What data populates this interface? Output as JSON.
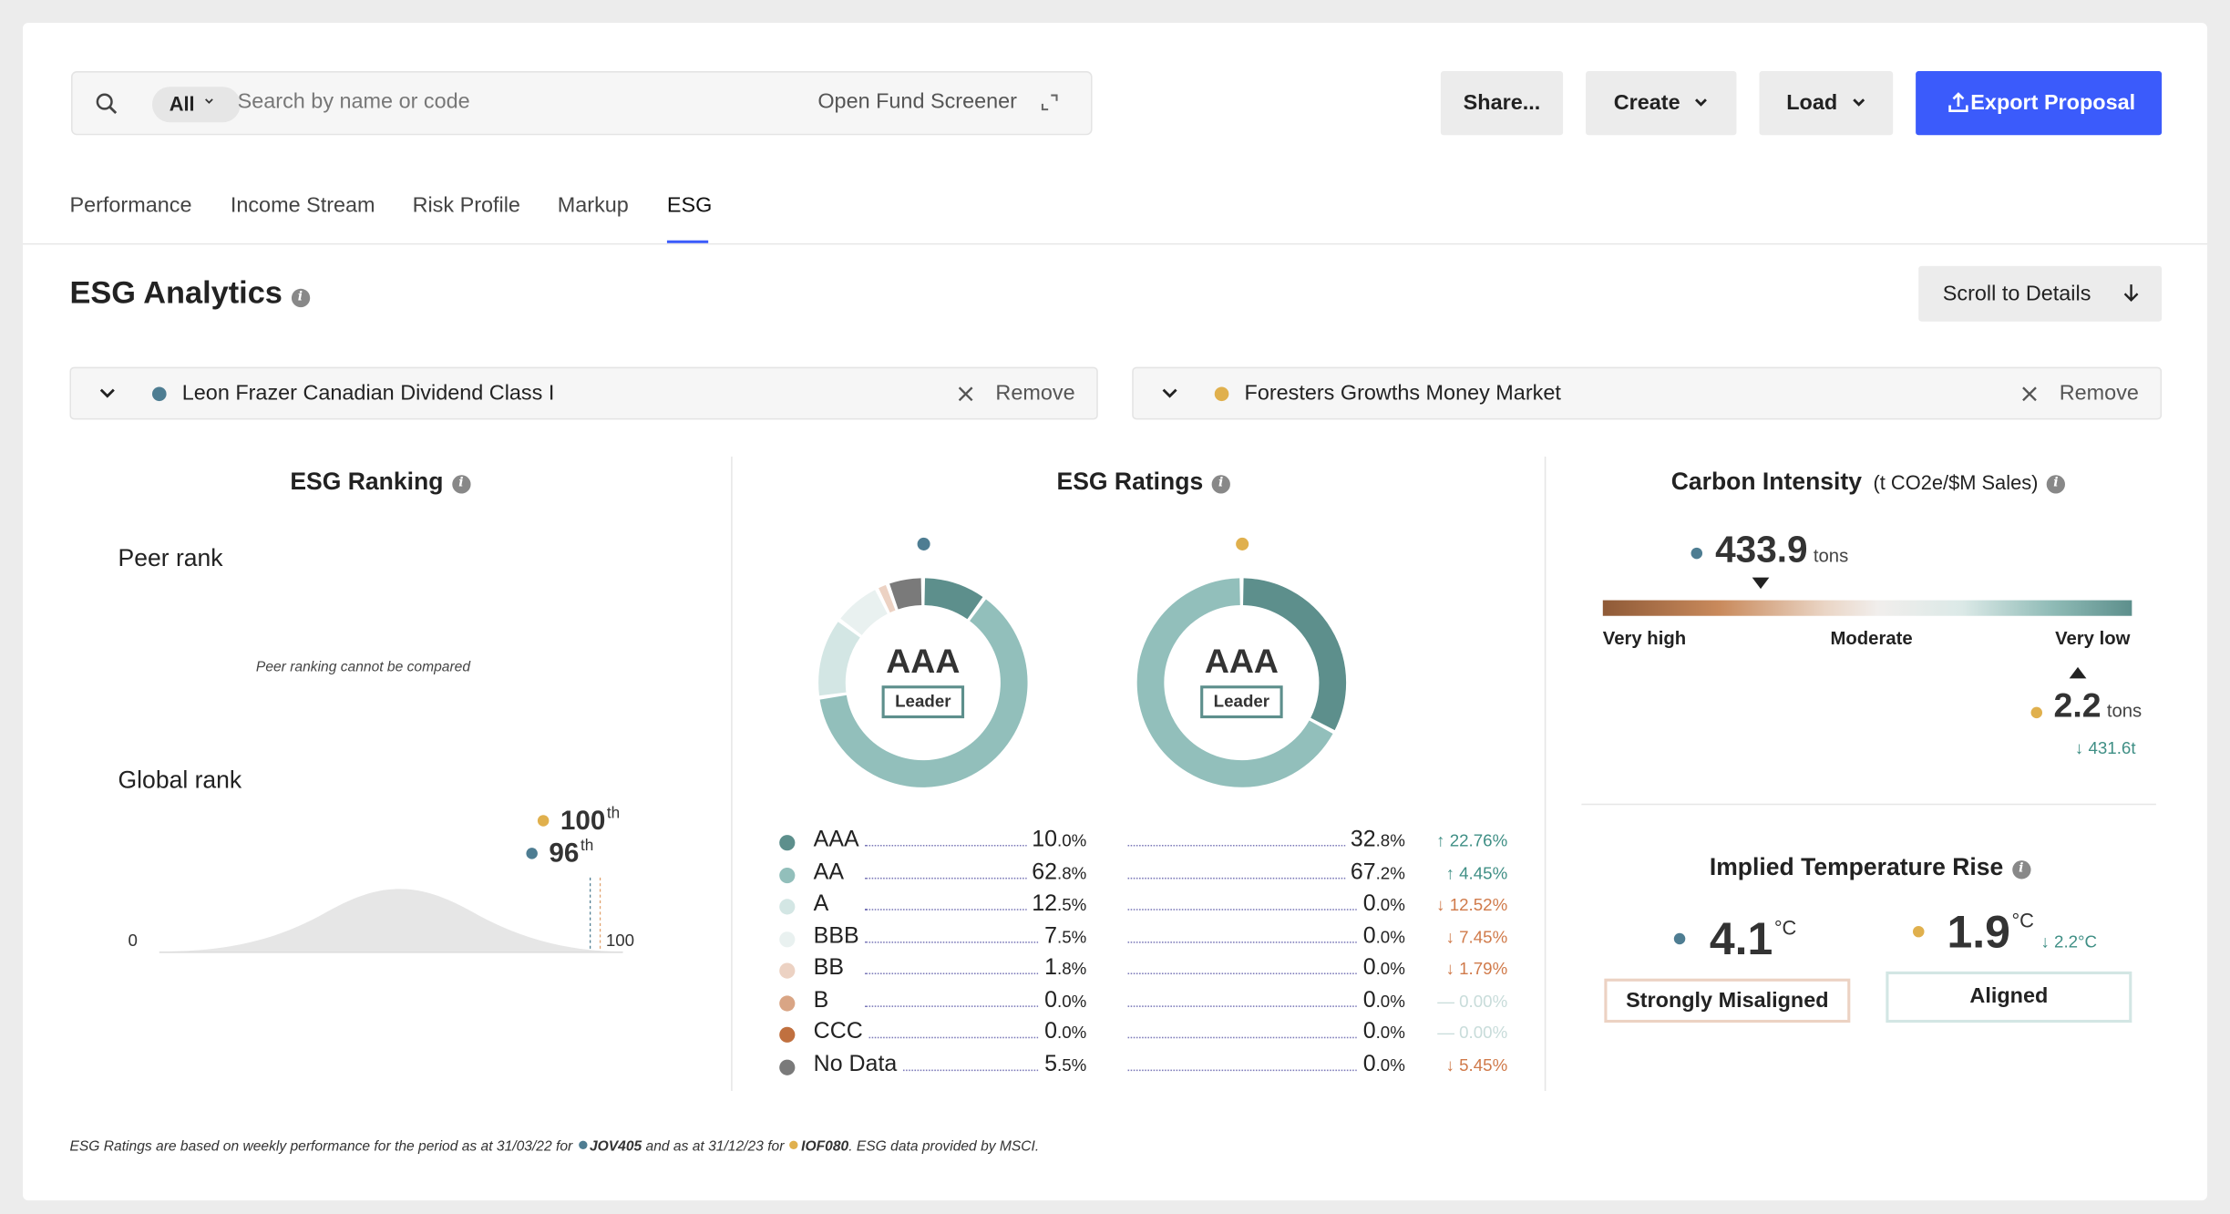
{
  "search": {
    "filter_label": "All",
    "placeholder": "Search by name or code",
    "screener_label": "Open Fund Screener"
  },
  "toolbar": {
    "share_label": "Share...",
    "create_label": "Create",
    "load_label": "Load",
    "export_label": "Export Proposal"
  },
  "tabs": [
    {
      "label": "Performance"
    },
    {
      "label": "Income Stream"
    },
    {
      "label": "Risk Profile"
    },
    {
      "label": "Markup"
    },
    {
      "label": "ESG",
      "active": true
    }
  ],
  "page": {
    "title": "ESG Analytics",
    "scroll_label": "Scroll to Details"
  },
  "colors": {
    "fund_a": "#4e7d92",
    "fund_b": "#e0b04d",
    "accent": "#3b5bfb"
  },
  "funds": [
    {
      "name": "Leon Frazer Canadian Dividend Class I",
      "remove_label": "Remove",
      "code": "JOV405"
    },
    {
      "name": "Foresters Growths Money Market",
      "remove_label": "Remove",
      "code": "IOF080"
    }
  ],
  "ranking": {
    "title": "ESG Ranking",
    "peer_label": "Peer rank",
    "peer_message": "Peer ranking cannot be compared",
    "global_label": "Global rank",
    "axis_min": "0",
    "axis_max": "100",
    "fund_b_rank": "100",
    "fund_a_rank": "96",
    "suffix": "th"
  },
  "ratings": {
    "title": "ESG Ratings",
    "fund_a": {
      "grade": "AAA",
      "badge": "Leader"
    },
    "fund_b": {
      "grade": "AAA",
      "badge": "Leader"
    },
    "rows": [
      {
        "label": "AAA",
        "color": "#5d8f8c",
        "a_int": "10",
        "a_dec": ".0%",
        "b_int": "32",
        "b_dec": ".8%",
        "diff": "↑ 22.76%",
        "trend": "up",
        "a": 10.0,
        "b": 32.8
      },
      {
        "label": "AA",
        "color": "#92bfbb",
        "a_int": "62",
        "a_dec": ".8%",
        "b_int": "67",
        "b_dec": ".2%",
        "diff": "↑ 4.45%",
        "trend": "up",
        "a": 62.8,
        "b": 67.2
      },
      {
        "label": "A",
        "color": "#d3e6e4",
        "a_int": "12",
        "a_dec": ".5%",
        "b_int": "0",
        "b_dec": ".0%",
        "diff": "↓ 12.52%",
        "trend": "down",
        "a": 12.5,
        "b": 0.0
      },
      {
        "label": "BBB",
        "color": "#e9f1f0",
        "a_int": "7",
        "a_dec": ".5%",
        "b_int": "0",
        "b_dec": ".0%",
        "diff": "↓ 7.45%",
        "trend": "down",
        "a": 7.5,
        "b": 0.0
      },
      {
        "label": "BB",
        "color": "#ecd2c3",
        "a_int": "1",
        "a_dec": ".8%",
        "b_int": "0",
        "b_dec": ".0%",
        "diff": "↓ 1.79%",
        "trend": "down",
        "a": 1.8,
        "b": 0.0
      },
      {
        "label": "B",
        "color": "#d9a585",
        "a_int": "0",
        "a_dec": ".0%",
        "b_int": "0",
        "b_dec": ".0%",
        "diff": "— 0.00%",
        "trend": "zero",
        "a": 0.0,
        "b": 0.0
      },
      {
        "label": "CCC",
        "color": "#c0703f",
        "a_int": "0",
        "a_dec": ".0%",
        "b_int": "0",
        "b_dec": ".0%",
        "diff": "— 0.00%",
        "trend": "zero",
        "a": 0.0,
        "b": 0.0
      },
      {
        "label": "No Data",
        "color": "#7a7a7a",
        "a_int": "5",
        "a_dec": ".5%",
        "b_int": "0",
        "b_dec": ".0%",
        "diff": "↓ 5.45%",
        "trend": "down",
        "a": 5.5,
        "b": 0.0
      }
    ]
  },
  "carbon": {
    "title": "Carbon Intensity",
    "unit": "(t CO2e/$M Sales)",
    "fund_a_value": "433.9",
    "fund_b_value": "2.2",
    "value_unit": "tons",
    "scale_high": "Very high",
    "scale_mid": "Moderate",
    "scale_low": "Very low",
    "diff": "↓ 431.6t"
  },
  "temperature": {
    "title": "Implied Temperature Rise",
    "fund_a_value": "4.1",
    "fund_b_value": "1.9",
    "unit": "°C",
    "fund_a_label": "Strongly Misaligned",
    "fund_b_label": "Aligned",
    "diff": "↓ 2.2°C"
  },
  "footer": {
    "part1": "ESG Ratings are based on weekly performance for the period as at 31/03/22 for",
    "code_a": "JOV405",
    "part2": "and as at 31/12/23 for",
    "code_b": "IOF080",
    "part3": ". ESG data provided by MSCI."
  }
}
